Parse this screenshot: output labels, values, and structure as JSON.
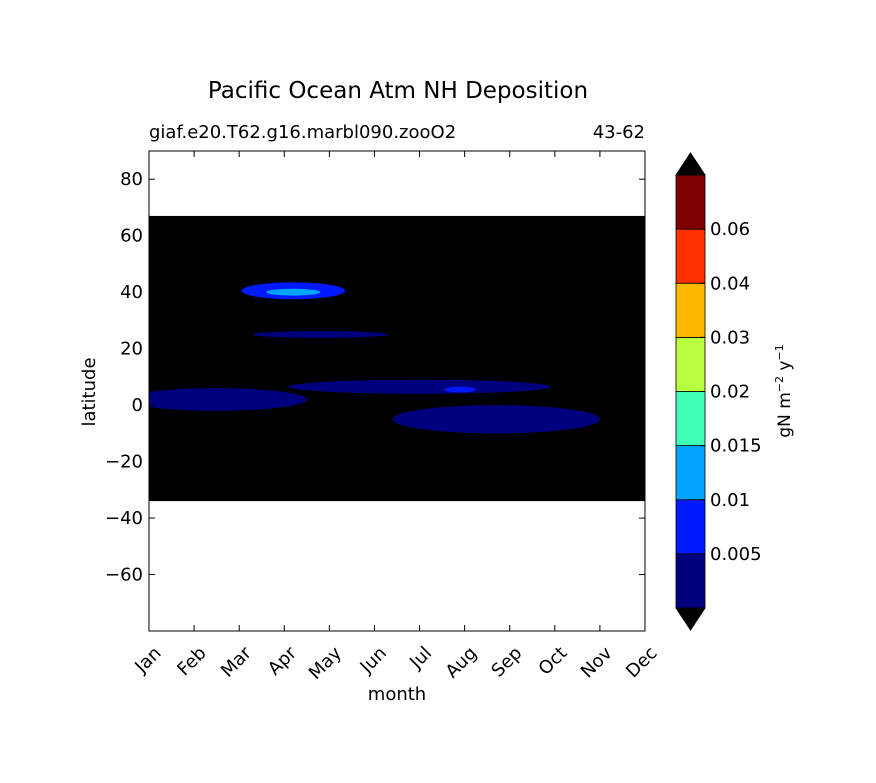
{
  "chart_data": {
    "type": "heatmap",
    "title": "Pacific Ocean Atm NH Deposition",
    "subtitle_left": "giaf.e20.T62.g16.marbl090.zooO2",
    "subtitle_right": "43-62",
    "xlabel": "month",
    "ylabel": "latitude",
    "x_tick_labels": [
      "Jan",
      "Feb",
      "Mar",
      "Apr",
      "May",
      "Jun",
      "Jul",
      "Aug",
      "Sep",
      "Oct",
      "Nov",
      "Dec"
    ],
    "x_range": [
      1,
      12
    ],
    "ylim": [
      -80,
      90
    ],
    "y_ticks": [
      80,
      60,
      40,
      20,
      0,
      -20,
      -40,
      -60
    ],
    "y_tick_labels": [
      "80",
      "60",
      "40",
      "20",
      "0",
      "−20",
      "−40",
      "−60"
    ],
    "data_lat_range": [
      -34,
      67
    ],
    "colorbar": {
      "label_main": "gN m",
      "label_exp1": "−2",
      "label_mid": " y",
      "label_exp2": "−1",
      "extend": "both",
      "levels": [
        0,
        0.0025,
        0.005,
        0.0075,
        0.01,
        0.0125,
        0.015,
        0.0175,
        0.02,
        0.025,
        0.03,
        0.04,
        0.05,
        0.06,
        0.07
      ],
      "bin_colors": [
        "#00007f",
        "#0019ff",
        "#00a4ff",
        "#40ffb7",
        "#b7ff40",
        "#ffb900",
        "#ff3000",
        "#7f0000"
      ],
      "tick_labels": [
        "0.005",
        "0.01",
        "0.015",
        "0.02",
        "0.03",
        "0.04",
        "0.06"
      ],
      "under_color": "#000000",
      "over_color": "#000000"
    },
    "regions": [
      {
        "level": 1,
        "month_center": 4.2,
        "lat_center": 40.5,
        "month_halfwidth": 1.15,
        "lat_halfwidth": 3.0
      },
      {
        "level": 2,
        "month_center": 4.2,
        "lat_center": 40.0,
        "month_halfwidth": 0.6,
        "lat_halfwidth": 1.2
      },
      {
        "level": 0,
        "month_center": 2.5,
        "lat_center": 2.0,
        "month_halfwidth": 2.0,
        "lat_halfwidth": 4.0
      },
      {
        "level": 0,
        "month_center": 7.0,
        "lat_center": 6.5,
        "month_halfwidth": 2.9,
        "lat_halfwidth": 2.5
      },
      {
        "level": 0,
        "month_center": 8.7,
        "lat_center": -5.0,
        "month_halfwidth": 2.3,
        "lat_halfwidth": 5.0
      },
      {
        "level": 1,
        "month_center": 7.9,
        "lat_center": 5.5,
        "month_halfwidth": 0.35,
        "lat_halfwidth": 1.0
      },
      {
        "level": 0,
        "month_center": 4.8,
        "lat_center": 25.0,
        "month_halfwidth": 1.5,
        "lat_halfwidth": 1.2
      }
    ]
  }
}
